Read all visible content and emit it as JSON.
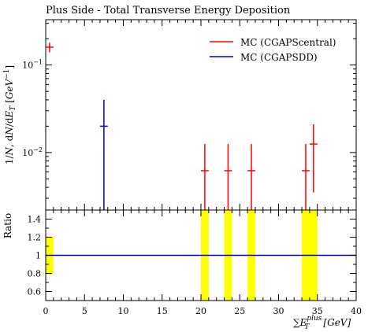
{
  "chart_data": [
    {
      "type": "scatter",
      "title": "Plus Side - Total Transverse Energy Deposition",
      "ylabel": "1/N dN/dE_T [GeV^-1]",
      "ylabel_parts": {
        "a": "1",
        "b": "/",
        "c": "N",
        "d": ", d",
        "e": "N",
        "f": "/d",
        "g": "E",
        "h": "T",
        "i": " [",
        "j": "GeV",
        "k": "−1",
        "l": "]"
      },
      "yscale": "log",
      "ylim": [
        0.0022,
        0.33
      ],
      "xlim": [
        0,
        40
      ],
      "y_ticks": [
        {
          "value": 0.1,
          "base": "10",
          "exp": "−1"
        },
        {
          "value": 0.01,
          "base": "10",
          "exp": "−2"
        }
      ],
      "legend_position": "top-right",
      "series": [
        {
          "name": "MC (CGAPScentral)",
          "color": "#ff0000",
          "points": [
            {
              "x": 0.5,
              "xlo": 0,
              "xhi": 1,
              "y": 0.16,
              "ylo": 0.14,
              "yhi": 0.18
            },
            {
              "x": 20.5,
              "xlo": 20,
              "xhi": 21,
              "y": 0.0062,
              "ylo": 0.0022,
              "yhi": 0.0125
            },
            {
              "x": 23.5,
              "xlo": 23,
              "xhi": 24,
              "y": 0.0062,
              "ylo": 0.0022,
              "yhi": 0.0125
            },
            {
              "x": 26.5,
              "xlo": 26,
              "xhi": 27,
              "y": 0.0062,
              "ylo": 0.0022,
              "yhi": 0.0125
            },
            {
              "x": 33.5,
              "xlo": 33,
              "xhi": 34,
              "y": 0.0062,
              "ylo": 0.0022,
              "yhi": 0.0125
            },
            {
              "x": 34.5,
              "xlo": 34,
              "xhi": 35,
              "y": 0.0125,
              "ylo": 0.0035,
              "yhi": 0.021
            }
          ]
        },
        {
          "name": "MC (CGAPSDD)",
          "color": "#0000cc",
          "points": [
            {
              "x": 7.5,
              "xlo": 7,
              "xhi": 8,
              "y": 0.02,
              "ylo": 0.0022,
              "yhi": 0.04
            }
          ]
        }
      ]
    },
    {
      "type": "line",
      "ylabel": "Ratio",
      "xlabel": "∑E_T^plus [GeV]",
      "xlabel_parts": {
        "sum": "∑",
        "e": "E",
        "sup": "plus",
        "sub": "T",
        "unit": "[GeV]"
      },
      "xlim": [
        0,
        40
      ],
      "ylim": [
        0.5,
        1.5
      ],
      "y_ticks": [
        "0.6",
        "0.8",
        "1",
        "1.2",
        "1.4"
      ],
      "x_ticks": [
        "0",
        "5",
        "10",
        "15",
        "20",
        "25",
        "30",
        "35",
        "40"
      ],
      "reference_line": {
        "y": 1.0,
        "color": "#0000cc"
      },
      "uncertainty_band_color": "#ffff00",
      "bands": [
        {
          "xlo": 0,
          "xhi": 1,
          "ylo": 0.79,
          "yhi": 1.21
        },
        {
          "xlo": 20,
          "xhi": 21,
          "ylo": 0.5,
          "yhi": 1.5
        },
        {
          "xlo": 23,
          "xhi": 24,
          "ylo": 0.5,
          "yhi": 1.5
        },
        {
          "xlo": 26,
          "xhi": 27,
          "ylo": 0.5,
          "yhi": 1.5
        },
        {
          "xlo": 33,
          "xhi": 35,
          "ylo": 0.5,
          "yhi": 1.5
        }
      ]
    }
  ]
}
